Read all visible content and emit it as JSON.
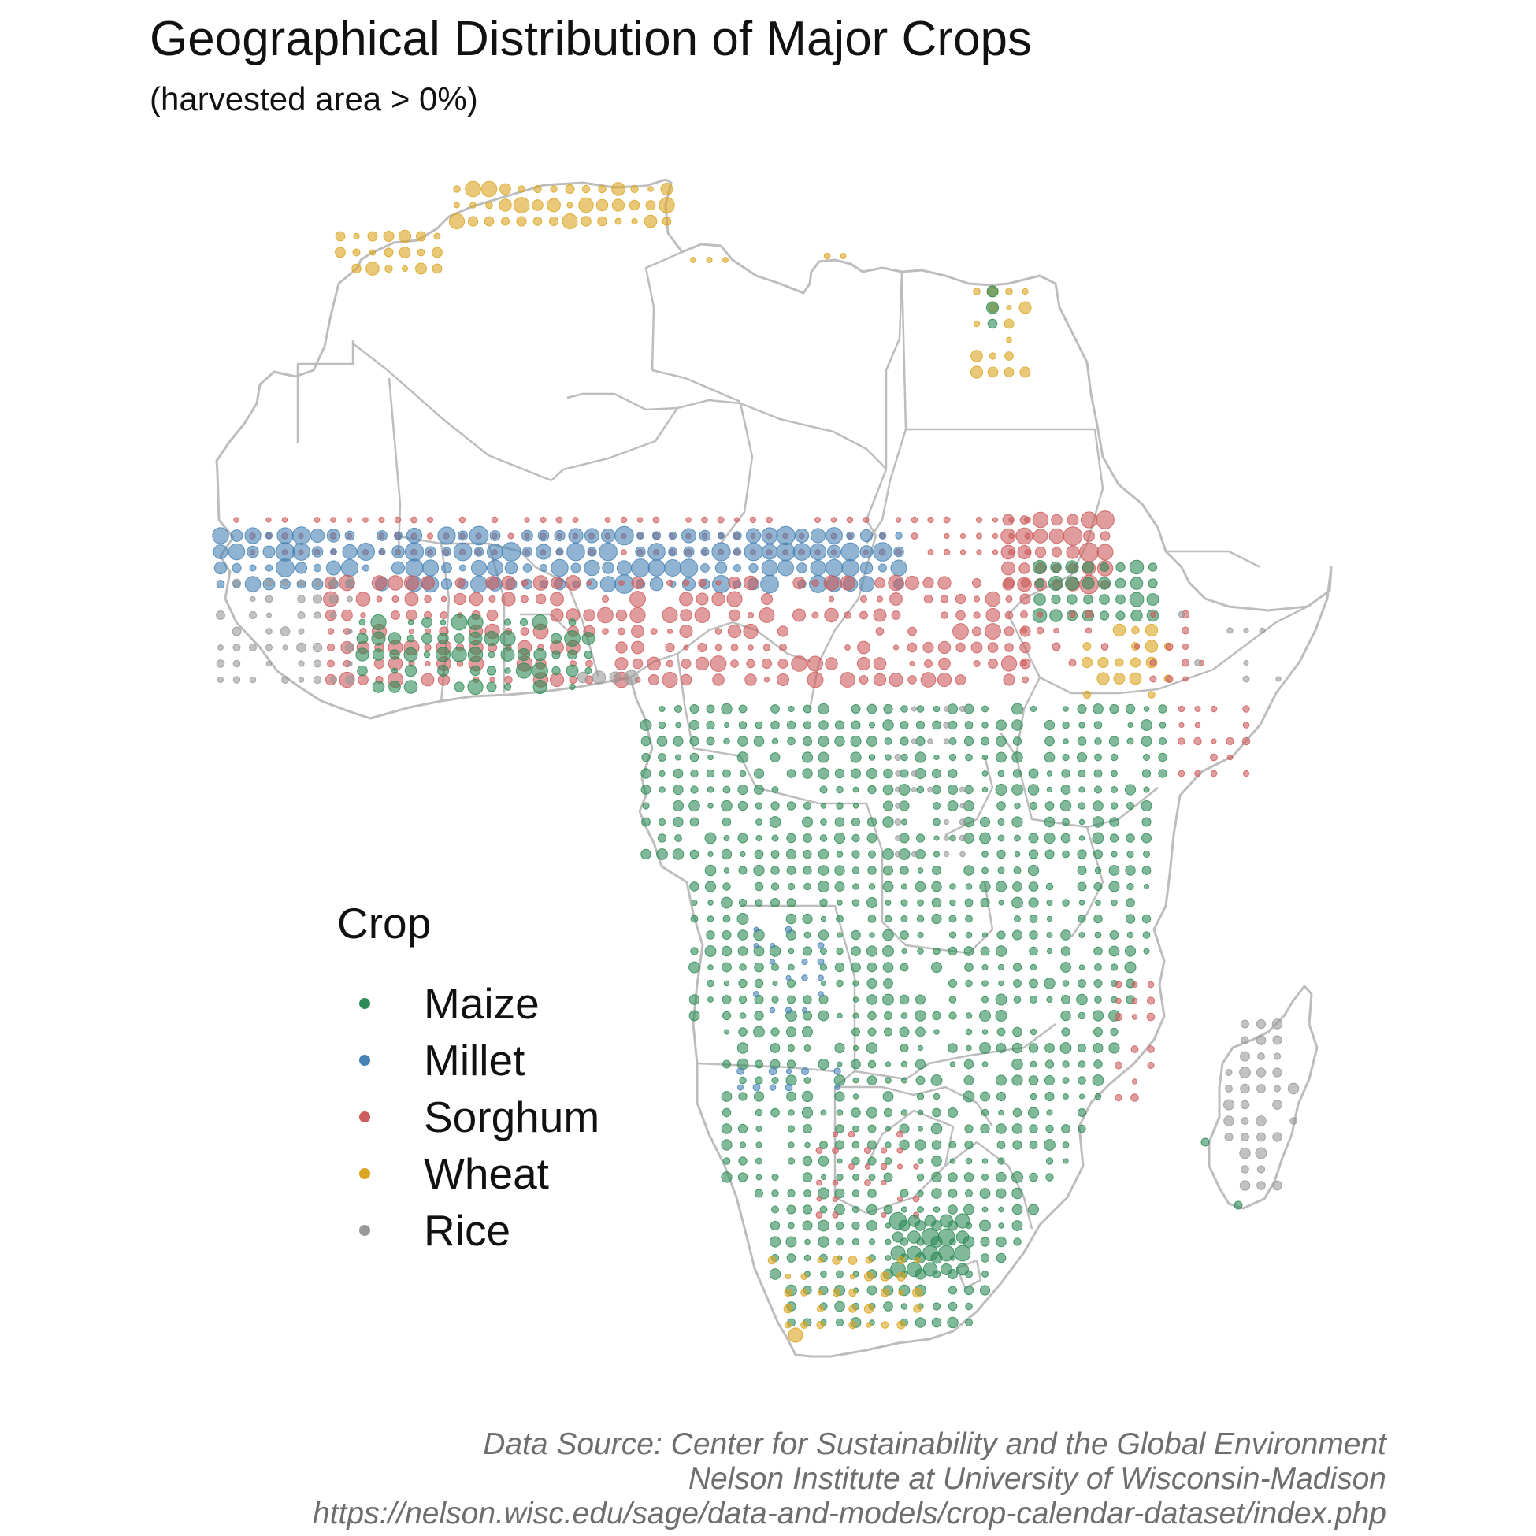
{
  "title": "Geographical Distribution of Major Crops",
  "subtitle": "(harvested area > 0%)",
  "legend": {
    "title": "Crop",
    "items": [
      {
        "label": "Maize",
        "color": "#2e8b57"
      },
      {
        "label": "Millet",
        "color": "#4682b4"
      },
      {
        "label": "Sorghum",
        "color": "#cd5c5c"
      },
      {
        "label": "Wheat",
        "color": "#daa520"
      },
      {
        "label": "Rice",
        "color": "#999999"
      }
    ]
  },
  "caption": {
    "line1": "Data Source: Center for Sustainability and the Global Environment",
    "line2": "Nelson Institute at University of Wisconsin-Madison",
    "line3": "https://nelson.wisc.edu/sage/data-and-models/crop-calendar-dataset/index.php"
  },
  "map": {
    "region": "Africa",
    "border_color": "#bdbdbd",
    "land_color": "#ffffff",
    "crop_zones": [
      {
        "crop": "Wheat",
        "area": "Morocco, northern Algeria and Tunisia"
      },
      {
        "crop": "Wheat",
        "area": "Nile valley, Egypt"
      },
      {
        "crop": "Wheat",
        "area": "Ethiopian highlands"
      },
      {
        "crop": "Wheat",
        "area": "Western Cape, South Africa"
      },
      {
        "crop": "Millet",
        "area": "Sahel belt"
      },
      {
        "crop": "Sorghum",
        "area": "Sudanian savanna and Sudan"
      },
      {
        "crop": "Rice",
        "area": "Guinea coast of West Africa"
      },
      {
        "crop": "Rice",
        "area": "Madagascar"
      },
      {
        "crop": "Maize",
        "area": "Central, eastern and southern Africa"
      }
    ]
  }
}
